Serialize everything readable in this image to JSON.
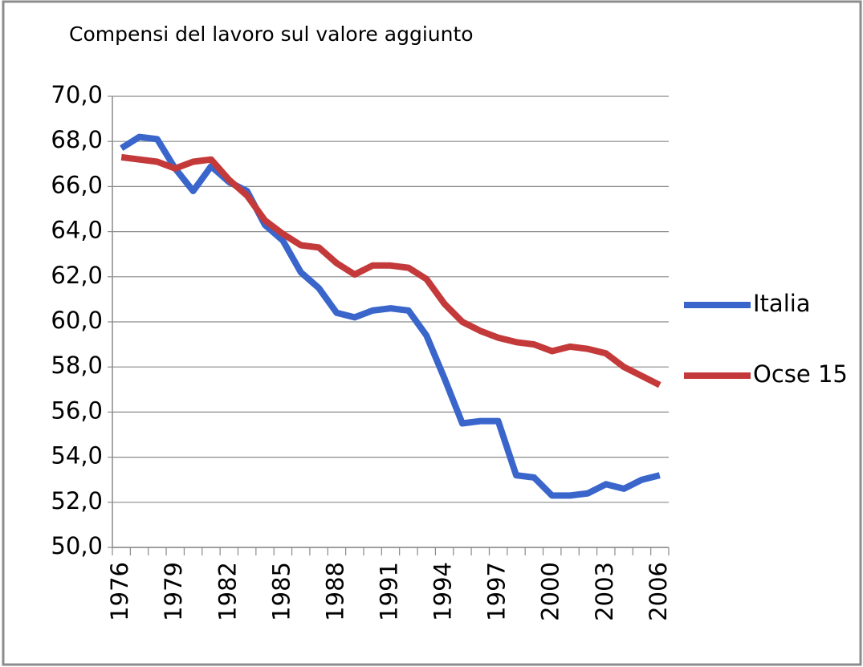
{
  "chart_data": {
    "type": "line",
    "title": "Compensi del lavoro sul valore aggiunto",
    "categories": [
      "1976",
      null,
      null,
      "1979",
      null,
      null,
      "1982",
      null,
      null,
      "1985",
      null,
      null,
      "1988",
      null,
      null,
      "1991",
      null,
      null,
      "1994",
      null,
      null,
      "1997",
      null,
      null,
      "2000",
      null,
      null,
      "2003",
      null,
      null,
      "2006"
    ],
    "series": [
      {
        "name": "Italia",
        "color": "#3a66cc",
        "values": [
          67.7,
          68.2,
          68.1,
          66.8,
          65.8,
          66.9,
          66.2,
          65.8,
          64.3,
          63.6,
          62.2,
          61.5,
          60.4,
          60.2,
          60.5,
          60.6,
          60.5,
          59.4,
          57.5,
          55.5,
          55.6,
          55.6,
          53.2,
          53.1,
          52.3,
          52.3,
          52.4,
          52.8,
          52.6,
          53.0,
          53.2
        ]
      },
      {
        "name": "Ocse 15",
        "color": "#c43a3a",
        "values": [
          67.3,
          67.2,
          67.1,
          66.8,
          67.1,
          67.2,
          66.3,
          65.6,
          64.5,
          63.9,
          63.4,
          63.3,
          62.6,
          62.1,
          62.5,
          62.5,
          62.4,
          61.9,
          60.8,
          60.0,
          59.6,
          59.3,
          59.1,
          59.0,
          58.7,
          58.9,
          58.8,
          58.6,
          58.0,
          57.6,
          57.2
        ]
      }
    ],
    "ylim": [
      50,
      70
    ],
    "yticks": [
      {
        "value": 50,
        "label": "50,0"
      },
      {
        "value": 52,
        "label": "52,0"
      },
      {
        "value": 54,
        "label": "54,0"
      },
      {
        "value": 56,
        "label": "56,0"
      },
      {
        "value": 58,
        "label": "58,0"
      },
      {
        "value": 60,
        "label": "60,0"
      },
      {
        "value": 62,
        "label": "62,0"
      },
      {
        "value": 64,
        "label": "64,0"
      },
      {
        "value": 66,
        "label": "66,0"
      },
      {
        "value": 68,
        "label": "68,0"
      },
      {
        "value": 70,
        "label": "70,0"
      }
    ],
    "grid": true,
    "legend": "right"
  }
}
